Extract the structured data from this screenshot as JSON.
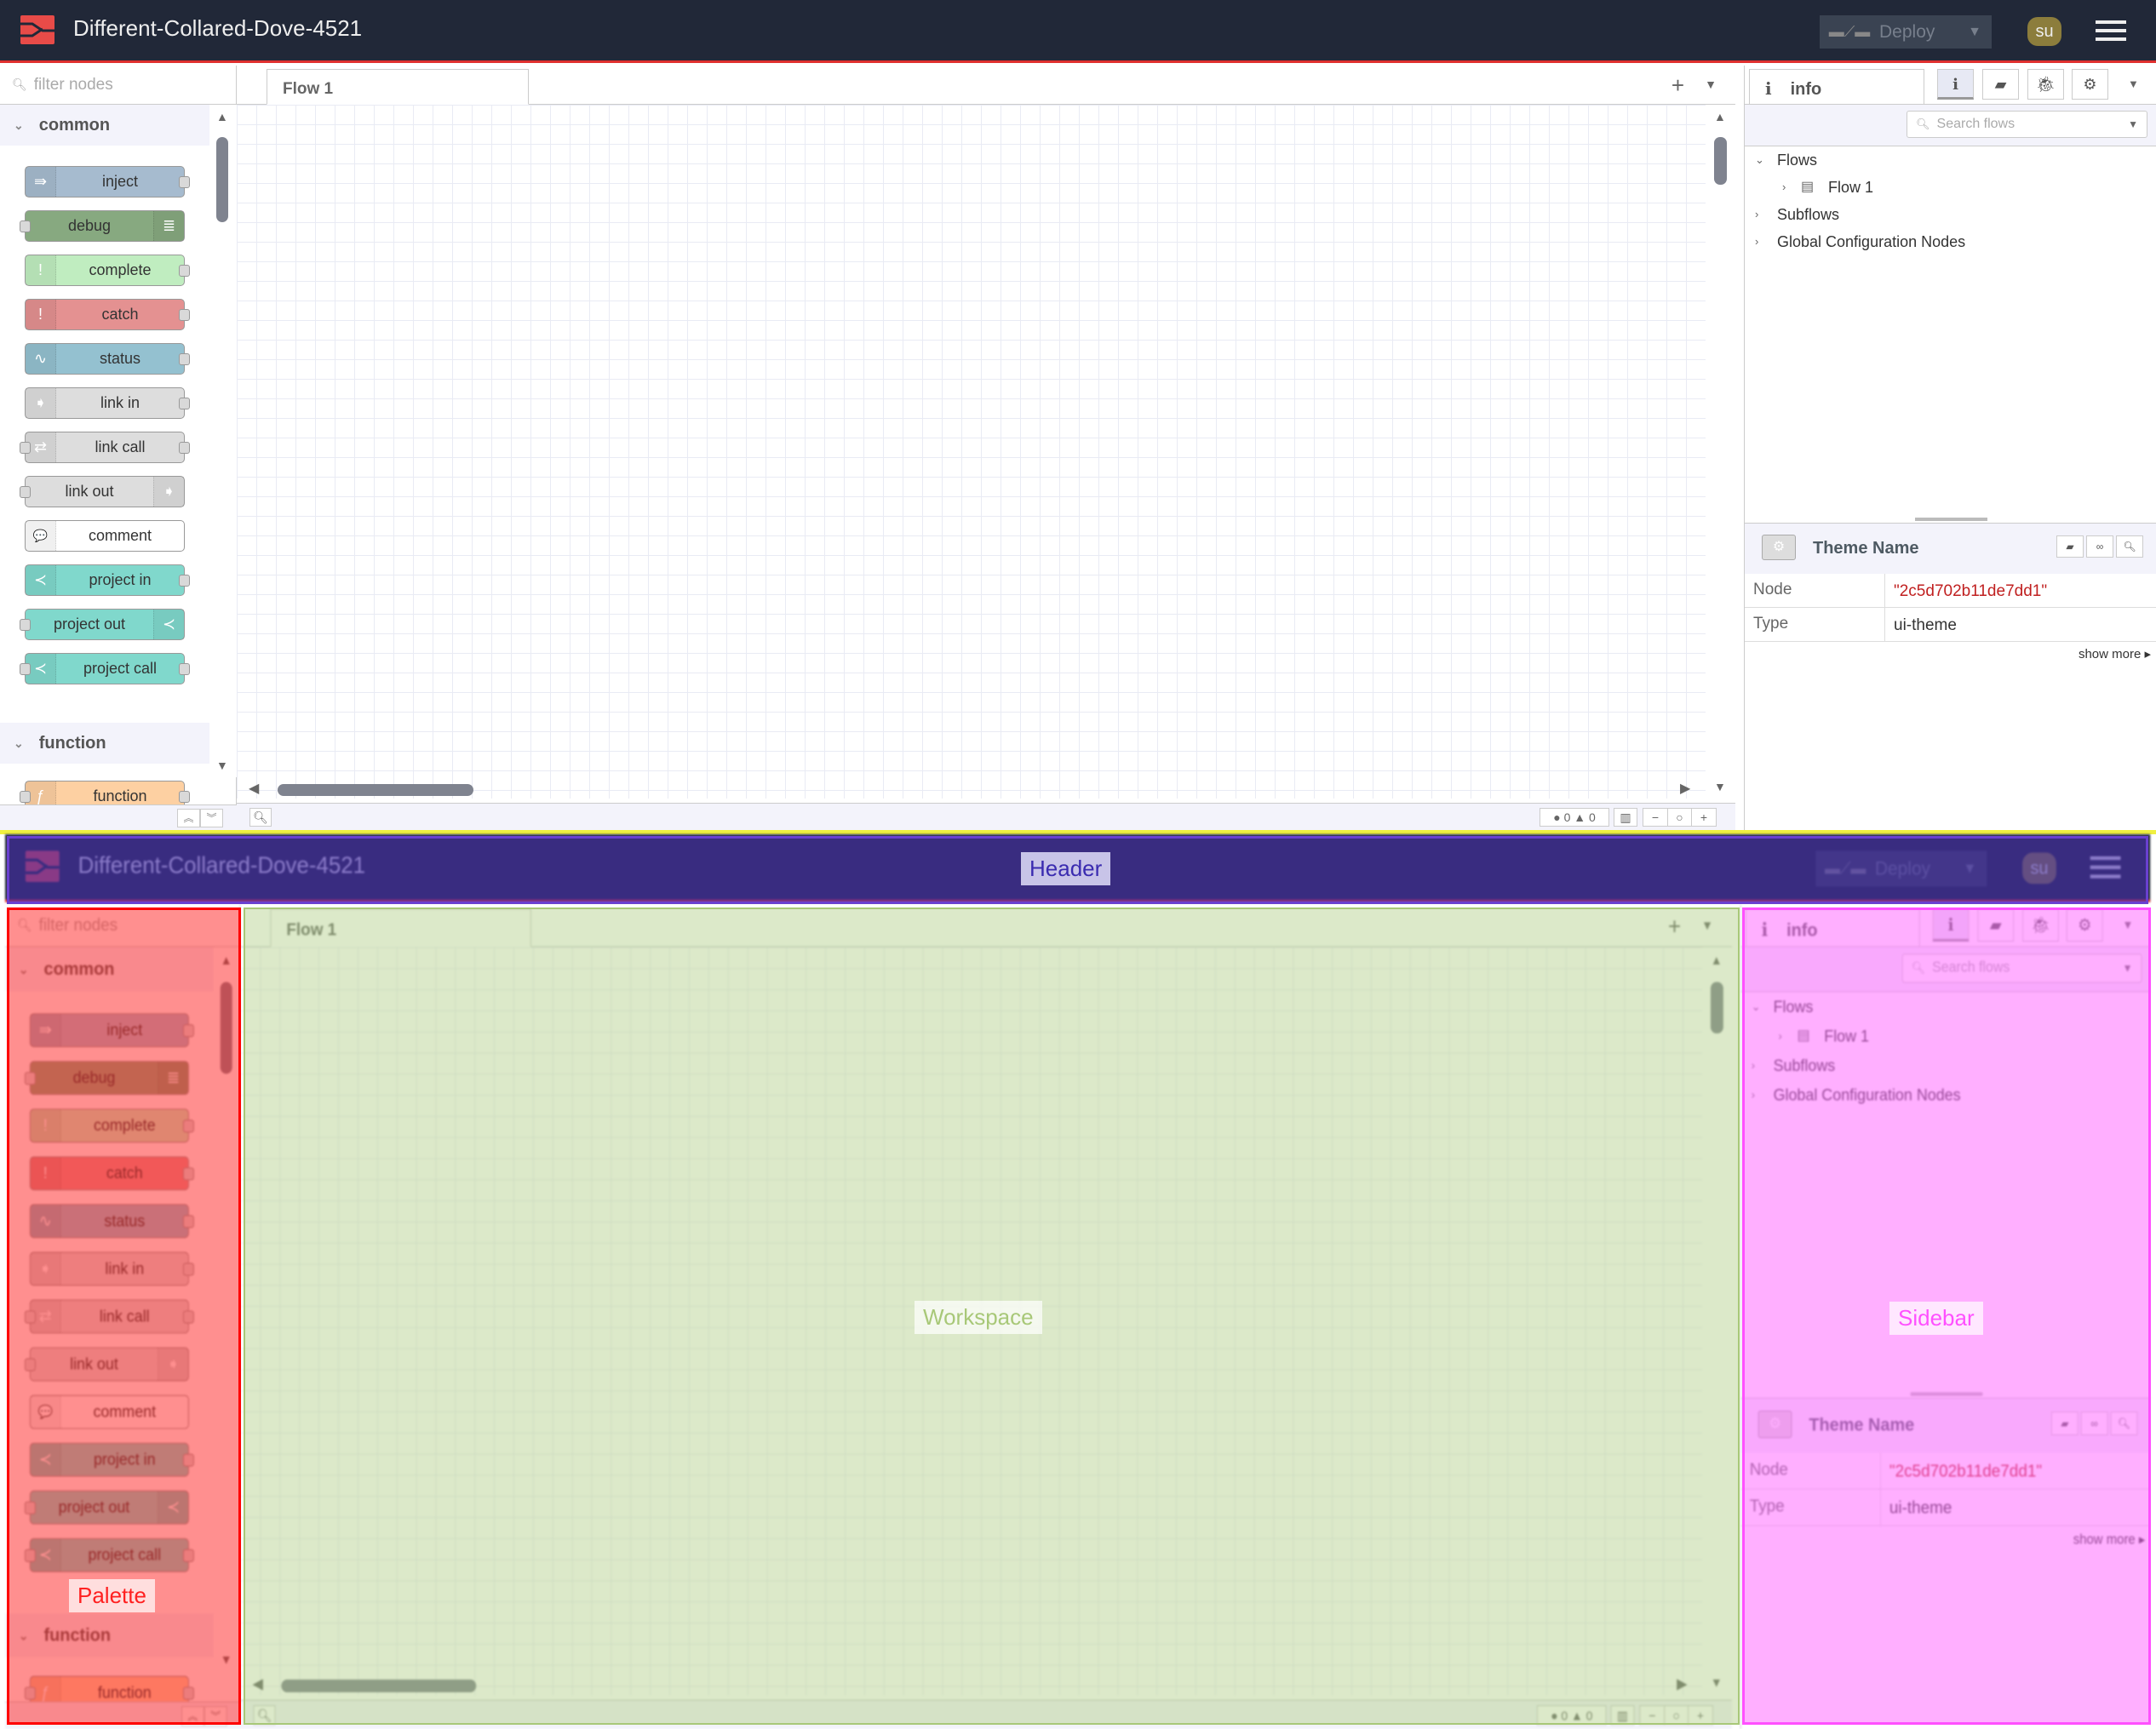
{
  "header": {
    "title": "Different-Collared-Dove-4521",
    "deploy_label": "Deploy",
    "user_initials": "su"
  },
  "palette": {
    "filter_placeholder": "filter nodes",
    "categories": [
      {
        "label": "common"
      },
      {
        "label": "function"
      }
    ],
    "nodes": [
      {
        "label": "inject",
        "color": "#a6bbcf",
        "icon": "arrow-in-icon",
        "glyph": "⇛",
        "icon_side": "left",
        "in": false,
        "out": true
      },
      {
        "label": "debug",
        "color": "#87a980",
        "icon": "list-icon",
        "glyph": "≣",
        "icon_side": "right",
        "in": true,
        "out": false
      },
      {
        "label": "complete",
        "color": "#c0edc0",
        "icon": "exclamation-icon",
        "glyph": "!",
        "icon_side": "left",
        "in": false,
        "out": true
      },
      {
        "label": "catch",
        "color": "#e49191",
        "icon": "exclamation-icon",
        "glyph": "!",
        "icon_side": "left",
        "in": false,
        "out": true
      },
      {
        "label": "status",
        "color": "#94c1d0",
        "icon": "pulse-icon",
        "glyph": "∿",
        "icon_side": "left",
        "in": false,
        "out": true
      },
      {
        "label": "link in",
        "color": "#dddddd",
        "icon": "link-in-icon",
        "glyph": "➧",
        "icon_side": "left",
        "in": false,
        "out": true
      },
      {
        "label": "link call",
        "color": "#dddddd",
        "icon": "link-call-icon",
        "glyph": "⇄",
        "icon_side": "left",
        "in": true,
        "out": true
      },
      {
        "label": "link out",
        "color": "#dddddd",
        "icon": "link-out-icon",
        "glyph": "➧",
        "icon_side": "right",
        "in": true,
        "out": false
      },
      {
        "label": "comment",
        "color": "#ffffff",
        "icon": "comment-icon",
        "glyph": "💬",
        "icon_side": "left",
        "in": false,
        "out": false
      },
      {
        "label": "project in",
        "color": "#80d8cc",
        "icon": "project-icon",
        "glyph": "≺",
        "icon_side": "left",
        "in": false,
        "out": true
      },
      {
        "label": "project out",
        "color": "#80d8cc",
        "icon": "project-icon",
        "glyph": "≺",
        "icon_side": "right",
        "in": true,
        "out": false
      },
      {
        "label": "project call",
        "color": "#80d8cc",
        "icon": "project-icon",
        "glyph": "≺",
        "icon_side": "left",
        "in": true,
        "out": true
      },
      {
        "label": "function",
        "color": "#fdd0a2",
        "icon": "function-icon",
        "glyph": "ƒ",
        "icon_side": "left",
        "in": true,
        "out": true,
        "category": "function"
      }
    ]
  },
  "workspace": {
    "tabs": [
      {
        "label": "Flow 1"
      }
    ],
    "errors": "0",
    "warnings": "0"
  },
  "sidebar": {
    "tab_label": "info",
    "search_placeholder": "Search flows",
    "tree": {
      "flows": "Flows",
      "flow1": "Flow 1",
      "subflows": "Subflows",
      "global": "Global Configuration Nodes"
    },
    "node_title": "Theme Name",
    "props": [
      {
        "key": "Node",
        "value": "\"2c5d702b11de7dd1\""
      },
      {
        "key": "Type",
        "value": "ui-theme"
      }
    ],
    "show_more": "show more"
  },
  "overlay": {
    "header": "Header",
    "palette": "Palette",
    "workspace": "Workspace",
    "sidebar": "Sidebar",
    "colors": {
      "header": "#4a2fb0",
      "palette": "#ff2020",
      "workspace": "#a8c878",
      "sidebar": "#ff60ff"
    }
  }
}
